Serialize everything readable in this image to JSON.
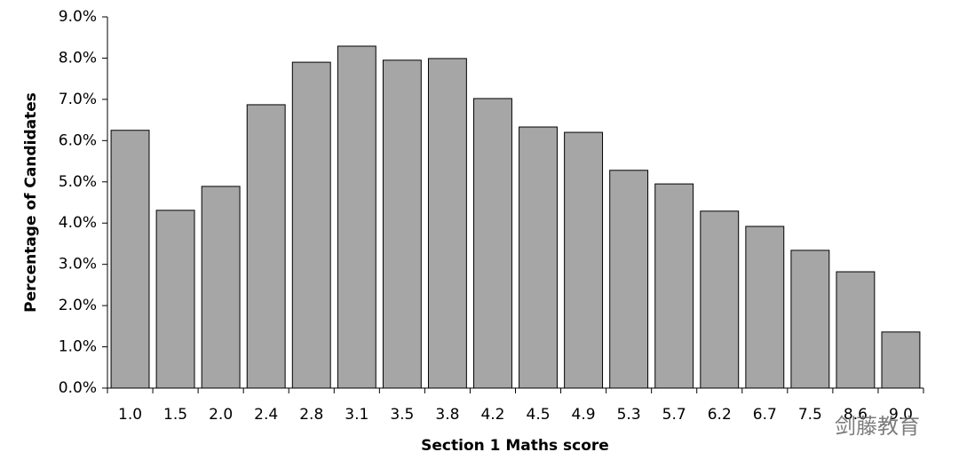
{
  "chart_data": {
    "type": "bar",
    "x_label": "Section 1 Maths score",
    "y_label": "Percentage of Candidates",
    "categories": [
      "1.0",
      "1.5",
      "2.0",
      "2.4",
      "2.8",
      "3.1",
      "3.5",
      "3.8",
      "4.2",
      "4.5",
      "4.9",
      "5.3",
      "5.7",
      "6.2",
      "6.7",
      "7.5",
      "8.6",
      "9.0"
    ],
    "values": [
      6.25,
      4.31,
      4.89,
      6.87,
      7.9,
      8.29,
      7.95,
      7.99,
      7.02,
      6.33,
      6.2,
      5.28,
      4.95,
      4.29,
      3.92,
      3.34,
      2.82,
      1.36
    ],
    "color": "#a6a6a6",
    "ylim": [
      0,
      9
    ],
    "yticks": [
      {
        "value": 0,
        "label": "0.0%"
      },
      {
        "value": 1,
        "label": "1.0%"
      },
      {
        "value": 2,
        "label": "2.0%"
      },
      {
        "value": 3,
        "label": "3.0%"
      },
      {
        "value": 4,
        "label": "4.0%"
      },
      {
        "value": 5,
        "label": "5.0%"
      },
      {
        "value": 6,
        "label": "6.0%"
      },
      {
        "value": 7,
        "label": "7.0%"
      },
      {
        "value": 8,
        "label": "8.0%"
      },
      {
        "value": 9,
        "label": "9.0%"
      }
    ],
    "grid": false,
    "watermark": "剑藤教育"
  }
}
